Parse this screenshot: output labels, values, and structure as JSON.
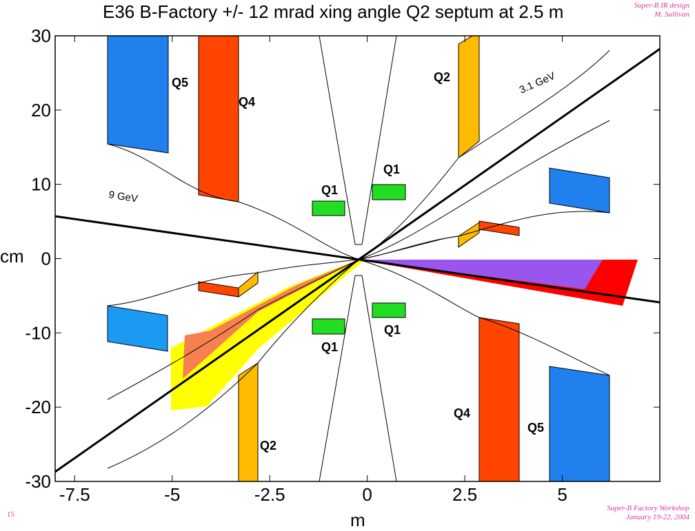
{
  "slide": {
    "title": "E36 B-Factory +/- 12 mrad xing angle Q2 septum at 2.5 m",
    "credit_top": [
      "Super-B IR design",
      "M. Sullivan"
    ],
    "credit_bottom": [
      "Super-B Factory Workshop",
      "January 19-22, 2004"
    ],
    "page_number": "15"
  },
  "plot": {
    "xlabel": "m",
    "ylabel": "cm",
    "xlim": [
      -8.0,
      7.5
    ],
    "ylim": [
      -30,
      30
    ],
    "xticks": [
      -7.5,
      -5,
      -2.5,
      0,
      2.5,
      5
    ],
    "xtick_labels": [
      "-7.5",
      "-5",
      "-2.5",
      "0",
      "2.5",
      "5"
    ],
    "yticks": [
      30,
      20,
      10,
      0,
      -10,
      -20,
      -30
    ],
    "ytick_labels": [
      "30",
      "20",
      "10",
      "0",
      "-10",
      "-20",
      "-30"
    ]
  },
  "colors": {
    "blue": "#1f80ee",
    "blue_light": "#1a9af0",
    "orange_red": "#ff4500",
    "amber": "#ffbb00",
    "green": "#22dd22",
    "yellow": "#ffff00",
    "salmon": "#f78050",
    "red": "#ff0000",
    "purple": "#9955ee"
  },
  "labels": {
    "q5_top": "Q5",
    "q4_top": "Q4",
    "q2_top": "Q2",
    "q1_ul": "Q1",
    "q1_ur": "Q1",
    "q1_lr": "Q1",
    "q1_ll": "Q1",
    "q2_bottom": "Q2",
    "q4_bottom": "Q4",
    "q5_bottom": "Q5",
    "beam_9": "9 GeV",
    "beam_31": "3.1 GeV"
  }
}
